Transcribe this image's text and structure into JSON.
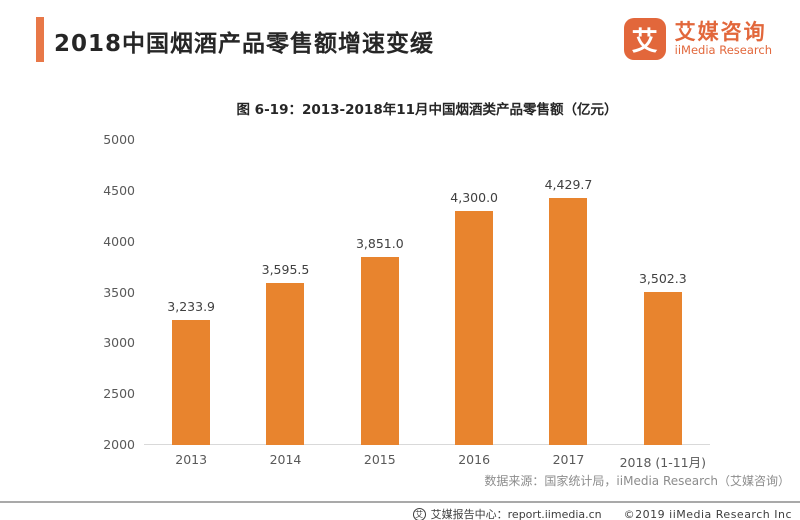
{
  "header": {
    "title": "2018中国烟酒产品零售额增速变缓",
    "accent_color": "#E87848"
  },
  "logo": {
    "glyph": "艾",
    "name_cn": "艾媒咨询",
    "name_en": "iiMedia Research",
    "color": "#E2673B"
  },
  "chart_data": {
    "type": "bar",
    "title": "图 6-19：2013-2018年11月中国烟酒类产品零售额（亿元）",
    "categories": [
      "2013",
      "2014",
      "2015",
      "2016",
      "2017",
      "2018 (1-11月)"
    ],
    "values": [
      3233.9,
      3595.5,
      3851.0,
      4300.0,
      4429.7,
      3502.3
    ],
    "value_labels": [
      "3,233.9",
      "3,595.5",
      "3,851.0",
      "4,300.0",
      "4,429.7",
      "3,502.3"
    ],
    "xlabel": "",
    "ylabel": "",
    "ylim": [
      2000,
      5000
    ],
    "yticks": [
      2000,
      2500,
      3000,
      3500,
      4000,
      4500,
      5000
    ],
    "bar_color": "#E8842E",
    "grid": false,
    "legend": false
  },
  "source_note": "数据来源：国家统计局，iiMedia Research（艾媒咨询）",
  "footer": {
    "icon_glyph": "艾",
    "report_center": "艾媒报告中心：report.iimedia.cn",
    "copyright": "©2019  iiMedia Research  Inc"
  }
}
